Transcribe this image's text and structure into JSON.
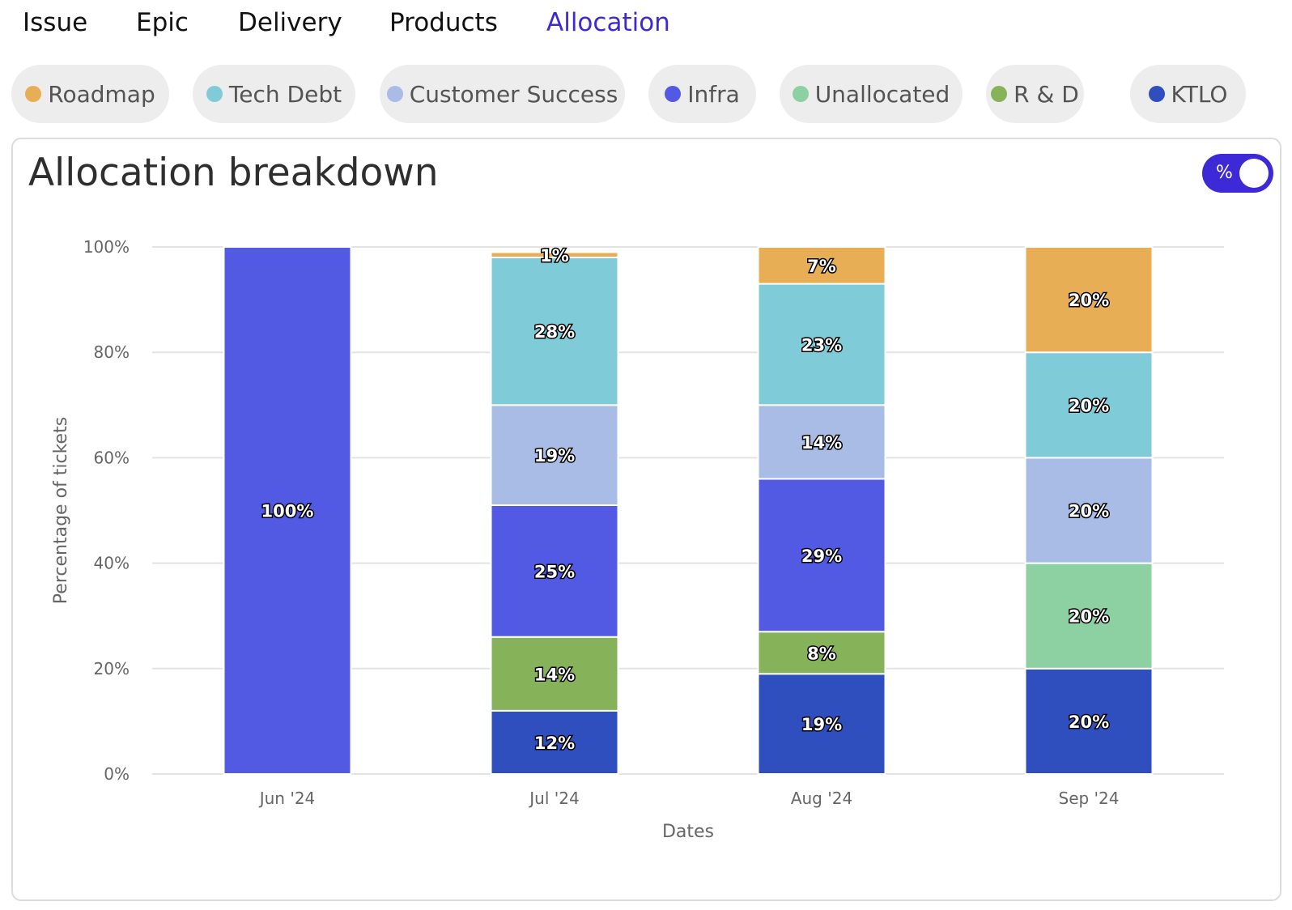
{
  "tabs": [
    {
      "label": "Issue",
      "active": false
    },
    {
      "label": "Epic",
      "active": false
    },
    {
      "label": "Delivery",
      "active": false
    },
    {
      "label": "Products",
      "active": false
    },
    {
      "label": "Allocation",
      "active": true
    }
  ],
  "legend": [
    {
      "label": "Roadmap",
      "color": "#e8ae56"
    },
    {
      "label": "Tech Debt",
      "color": "#80cbd8"
    },
    {
      "label": "Customer Success",
      "color": "#a9bce5"
    },
    {
      "label": "Infra",
      "color": "#5259e3"
    },
    {
      "label": "Unallocated",
      "color": "#8dd0a2"
    },
    {
      "label": "R & D",
      "color": "#86b35a"
    },
    {
      "label": "KTLO",
      "color": "#2f4fbf"
    }
  ],
  "card": {
    "title": "Allocation breakdown",
    "toggle_symbol": "%",
    "toggle_on": true
  },
  "chart_data": {
    "type": "bar",
    "stacked": true,
    "title": "Allocation breakdown",
    "xlabel": "Dates",
    "ylabel": "Percentage of tickets",
    "categories": [
      "Jun '24",
      "Jul '24",
      "Aug '24",
      "Sep '24"
    ],
    "ylim": [
      0,
      100
    ],
    "yticks": [
      "0%",
      "20%",
      "40%",
      "60%",
      "80%",
      "100%"
    ],
    "grid": true,
    "series": [
      {
        "name": "KTLO",
        "color": "#2f4fbf",
        "values": [
          0,
          12,
          19,
          20
        ]
      },
      {
        "name": "R & D",
        "color": "#86b35a",
        "values": [
          0,
          14,
          8,
          0
        ]
      },
      {
        "name": "Unallocated",
        "color": "#8dd0a2",
        "values": [
          0,
          0,
          0,
          20
        ]
      },
      {
        "name": "Infra",
        "color": "#5259e3",
        "values": [
          100,
          25,
          29,
          0
        ]
      },
      {
        "name": "Customer Success",
        "color": "#a9bce5",
        "values": [
          0,
          19,
          14,
          20
        ]
      },
      {
        "name": "Tech Debt",
        "color": "#80cbd8",
        "values": [
          0,
          28,
          23,
          20
        ]
      },
      {
        "name": "Roadmap",
        "color": "#e8ae56",
        "values": [
          0,
          1,
          7,
          20
        ]
      }
    ]
  }
}
